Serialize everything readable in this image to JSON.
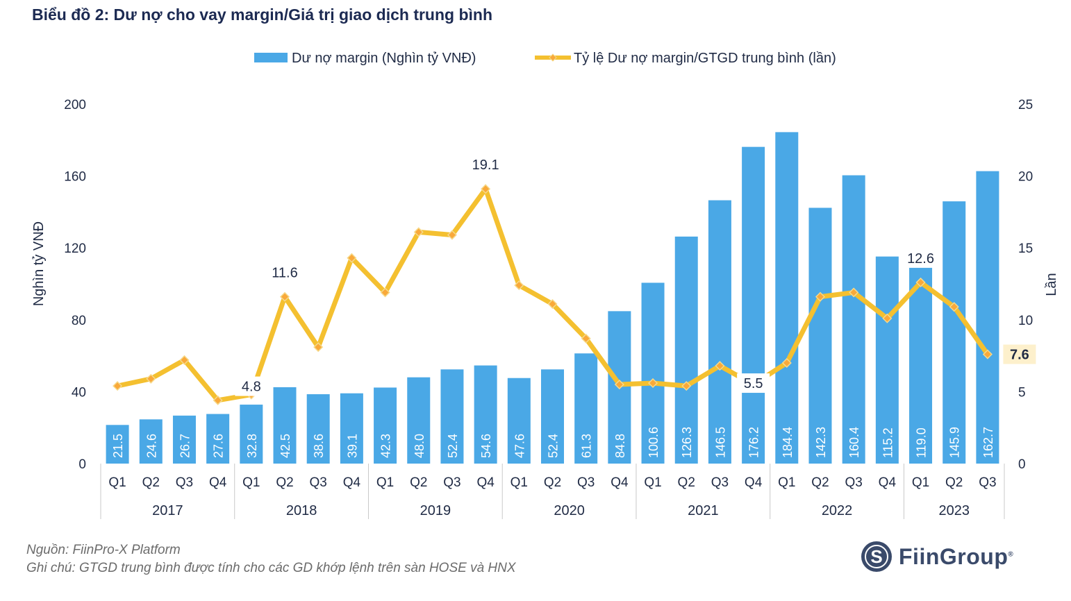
{
  "title": "Biểu đồ 2: Dư nợ cho vay margin/Giá trị giao dịch trung bình",
  "footer": {
    "source": "Nguồn: FiinPro-X Platform",
    "note": "Ghi chú: GTGD trung bình được tính cho các GD khớp lệnh trên sàn HOSE và HNX",
    "logo": "FiinGroup",
    "logo_reg": "®"
  },
  "colors": {
    "bar": "#4aa8e6",
    "line": "#f4c030",
    "marker_fill": "#f9a93a",
    "marker_stroke": "#f6d98a",
    "text": "#1f2a44",
    "highlight_bg": "#fdf0cc"
  },
  "chart_data": {
    "type": "bar+line",
    "legend": [
      "Dư nợ margin (Nghìn tỷ VNĐ)",
      "Tỷ lệ Dư nợ margin/GTGD trung bình (lần)"
    ],
    "ylabel": "Nghìn tỷ VNĐ",
    "y2label": "Lần",
    "ylim": [
      0,
      200
    ],
    "yticks": [
      "0",
      "40",
      "80",
      "120",
      "160",
      "200"
    ],
    "y2lim": [
      0,
      25
    ],
    "y2ticks": [
      "0",
      "5",
      "10",
      "15",
      "20",
      "25"
    ],
    "quarters": [
      "Q1",
      "Q2",
      "Q3",
      "Q4",
      "Q1",
      "Q2",
      "Q3",
      "Q4",
      "Q1",
      "Q2",
      "Q3",
      "Q4",
      "Q1",
      "Q2",
      "Q3",
      "Q4",
      "Q1",
      "Q2",
      "Q3",
      "Q4",
      "Q1",
      "Q2",
      "Q3",
      "Q4",
      "Q1",
      "Q2",
      "Q3"
    ],
    "years": [
      {
        "label": "2017",
        "count": 4
      },
      {
        "label": "2018",
        "count": 4
      },
      {
        "label": "2019",
        "count": 4
      },
      {
        "label": "2020",
        "count": 4
      },
      {
        "label": "2021",
        "count": 4
      },
      {
        "label": "2022",
        "count": 4
      },
      {
        "label": "2023",
        "count": 3
      }
    ],
    "bar_values": [
      21.5,
      24.6,
      26.7,
      27.6,
      32.8,
      42.5,
      38.6,
      39.1,
      42.3,
      48.0,
      52.4,
      54.6,
      47.6,
      52.4,
      61.3,
      84.8,
      100.6,
      126.3,
      146.5,
      176.2,
      184.4,
      142.3,
      160.4,
      115.2,
      119.0,
      145.9,
      162.7
    ],
    "bar_labels": [
      "21.5",
      "24.6",
      "26.7",
      "27.6",
      "32.8",
      "42.5",
      "38.6",
      "39.1",
      "42.3",
      "48.0",
      "52.4",
      "54.6",
      "47.6",
      "52.4",
      "61.3",
      "84.8",
      "100.6",
      "126.3",
      "146.5",
      "176.2",
      "184.4",
      "142.3",
      "160.4",
      "115.2",
      "119.0",
      "145.9",
      "162.7"
    ],
    "ratio_values": [
      5.4,
      5.9,
      7.2,
      4.4,
      4.8,
      11.6,
      8.1,
      14.3,
      11.9,
      16.1,
      15.9,
      19.1,
      12.4,
      11.1,
      8.7,
      5.5,
      5.6,
      5.4,
      6.8,
      5.5,
      7.0,
      11.6,
      11.9,
      10.1,
      12.6,
      10.9,
      7.6
    ],
    "ratio_labels": [
      {
        "index": 4,
        "text": "4.8"
      },
      {
        "index": 5,
        "text": "11.6"
      },
      {
        "index": 11,
        "text": "19.1"
      },
      {
        "index": 19,
        "text": "5.5"
      },
      {
        "index": 24,
        "text": "12.6"
      },
      {
        "index": 26,
        "text": "7.6"
      }
    ]
  }
}
